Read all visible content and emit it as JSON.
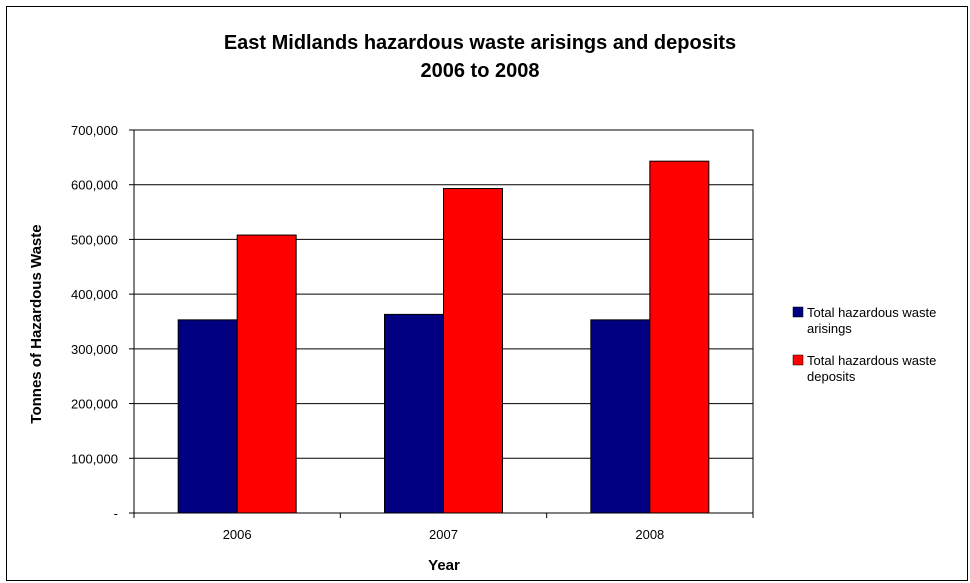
{
  "chart_data": {
    "type": "bar",
    "title_line1": "East Midlands hazardous waste arisings and deposits",
    "title_line2": "2006 to 2008",
    "xlabel": "Year",
    "ylabel": "Tonnes of Hazardous Waste",
    "categories": [
      "2006",
      "2007",
      "2008"
    ],
    "series": [
      {
        "name_line1": "Total hazardous waste",
        "name_line2": "arisings",
        "color": "#000080",
        "values": [
          353000,
          363000,
          353000
        ]
      },
      {
        "name_line1": "Total hazardous waste",
        "name_line2": "deposits",
        "color": "#ff0000",
        "values": [
          508000,
          593000,
          643000
        ]
      }
    ],
    "ylim": [
      0,
      700000
    ],
    "yticks": [
      "-",
      "100,000",
      "200,000",
      "300,000",
      "400,000",
      "500,000",
      "600,000",
      "700,000"
    ],
    "grid": true,
    "legend_position": "right"
  }
}
